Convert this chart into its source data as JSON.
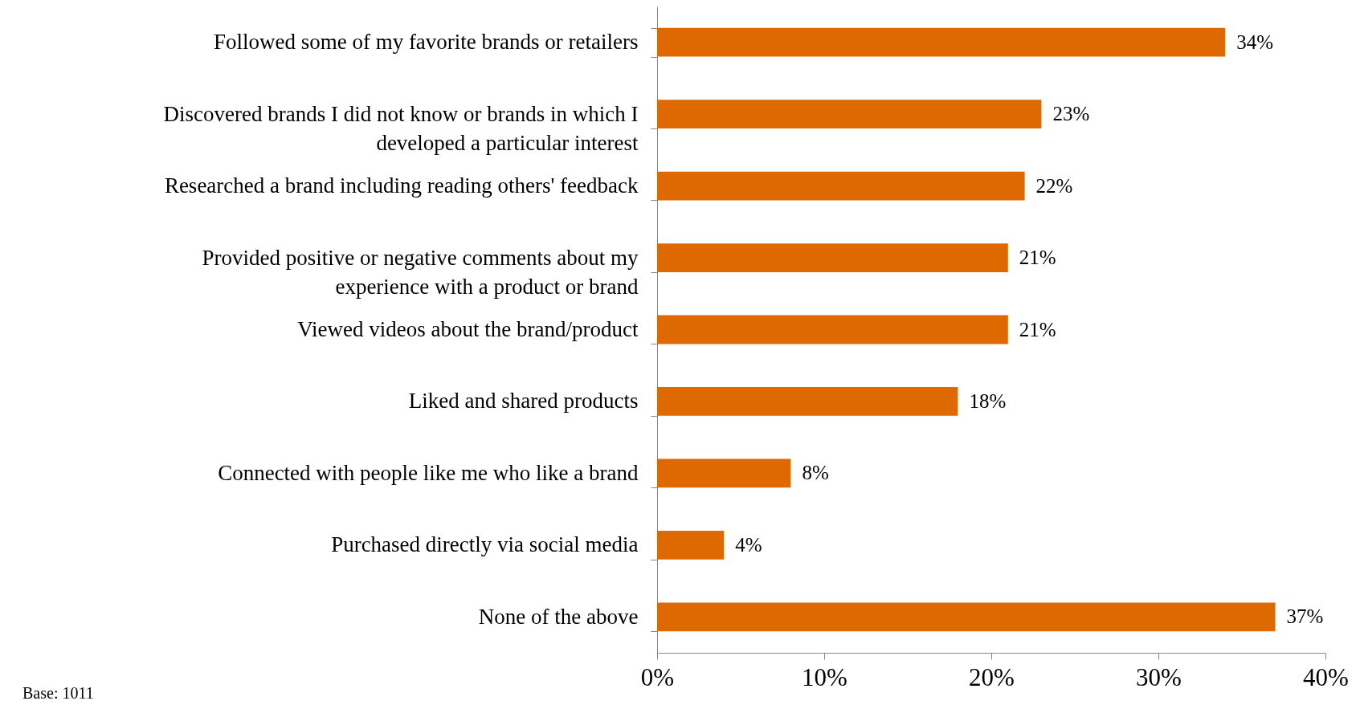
{
  "chart_data": {
    "type": "bar",
    "orientation": "horizontal",
    "categories": [
      "Followed some of my favorite brands or retailers",
      "Discovered brands I did not know or brands in which I developed a particular interest",
      "Researched a brand including reading others' feedback",
      "Provided positive or negative comments about my experience with a product or brand",
      "Viewed videos about the brand/product",
      "Liked and shared products",
      "Connected with people like me who like a brand",
      "Purchased directly via social media",
      "None of the above"
    ],
    "values": [
      34,
      23,
      22,
      21,
      21,
      18,
      8,
      4,
      37
    ],
    "value_labels": [
      "34%",
      "23%",
      "22%",
      "21%",
      "21%",
      "18%",
      "8%",
      "4%",
      "37%"
    ],
    "color": "#dd6900",
    "xlim": [
      0,
      40
    ],
    "xticks": [
      {
        "value": 0,
        "label": "0%"
      },
      {
        "value": 10,
        "label": "10%"
      },
      {
        "value": 20,
        "label": "20%"
      },
      {
        "value": 30,
        "label": "30%"
      },
      {
        "value": 40,
        "label": "40%"
      }
    ],
    "grid": false,
    "annotations": [
      "Base: 1011"
    ]
  }
}
